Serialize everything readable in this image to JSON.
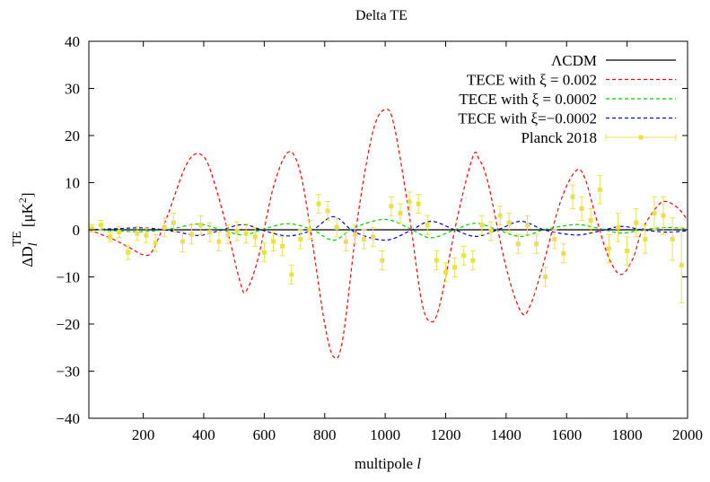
{
  "chart_data": {
    "type": "line",
    "title": "Delta TE",
    "xlabel": "multipole l",
    "ylabel": "ΔD_l^TE [μK²]",
    "xlim": [
      20,
      2000
    ],
    "ylim": [
      -40,
      40
    ],
    "xticks": [
      200,
      400,
      600,
      800,
      1000,
      1200,
      1400,
      1600,
      1800,
      2000
    ],
    "yticks": [
      -40,
      -30,
      -20,
      -10,
      0,
      10,
      20,
      30,
      40
    ],
    "legend_position": "top-right",
    "grid": false,
    "series": [
      {
        "name": "ΛCDM",
        "style": "solid",
        "color": "#000000",
        "x": [
          20,
          2000
        ],
        "y": [
          0,
          0
        ]
      },
      {
        "name": "TECE  with ξ =  0.002",
        "style": "dashed",
        "color": "#ff0000",
        "x": [
          20,
          100,
          160,
          200,
          230,
          280,
          330,
          360,
          390,
          420,
          470,
          520,
          540,
          580,
          630,
          680,
          720,
          760,
          800,
          830,
          860,
          910,
          960,
          1000,
          1030,
          1080,
          1120,
          1150,
          1180,
          1240,
          1290,
          1310,
          1340,
          1400,
          1450,
          1480,
          1520,
          1580,
          1630,
          1660,
          1700,
          1740,
          1780,
          1820,
          1850,
          1900,
          1930,
          1970,
          2000
        ],
        "y": [
          0,
          -2,
          -4,
          -5.3,
          -4.5,
          3,
          12,
          15.5,
          16,
          13,
          2,
          -11,
          -13,
          -6,
          9,
          16.5,
          12,
          -3,
          -20,
          -27,
          -23,
          3,
          21,
          25.5,
          22,
          3,
          -15,
          -19.5,
          -16,
          3,
          15.5,
          15,
          10,
          -8,
          -17.5,
          -16,
          -8,
          6,
          12.5,
          11,
          2,
          -6,
          -9.5,
          -6,
          0,
          5,
          6,
          4.5,
          2
        ]
      },
      {
        "name": "TECE with ξ = 0.0002",
        "style": "dashed",
        "color": "#00cc00",
        "x": [
          20,
          100,
          200,
          300,
          380,
          450,
          530,
          600,
          680,
          760,
          830,
          900,
          1000,
          1080,
          1150,
          1230,
          1300,
          1380,
          1450,
          1530,
          1630,
          1700,
          1780,
          1850,
          1930,
          2000
        ],
        "y": [
          0,
          -0.2,
          -0.4,
          0.3,
          1.2,
          0.2,
          -1.1,
          0.2,
          1.3,
          0,
          -2.2,
          0.5,
          2.2,
          0.3,
          -1.7,
          0,
          1.4,
          -0.2,
          -1.4,
          0.1,
          1.1,
          0.4,
          -0.7,
          0,
          0.5,
          0.2
        ]
      },
      {
        "name": "TECE with ξ=−0.0002",
        "style": "dashed",
        "color": "#0000cc",
        "x": [
          20,
          100,
          200,
          300,
          380,
          450,
          530,
          600,
          680,
          760,
          830,
          900,
          1000,
          1080,
          1150,
          1230,
          1300,
          1380,
          1450,
          1530,
          1630,
          1700,
          1780,
          1850,
          1930,
          2000
        ],
        "y": [
          0,
          0.2,
          0.4,
          -0.3,
          -1.2,
          -0.2,
          1.1,
          -0.2,
          -1.3,
          0,
          2.8,
          -0.5,
          -2.2,
          -0.3,
          1.8,
          0,
          -1.4,
          0.2,
          1.8,
          -0.1,
          -1.1,
          -0.4,
          0.7,
          0,
          -0.5,
          -0.2
        ]
      },
      {
        "name": "Planck 2018",
        "style": "points-errorbars",
        "color": "#e8e050",
        "points": [
          {
            "x": 30,
            "y": 0.3,
            "err": 0.8
          },
          {
            "x": 60,
            "y": 1.0,
            "err": 1.0
          },
          {
            "x": 90,
            "y": -1.5,
            "err": 1.0
          },
          {
            "x": 120,
            "y": -0.5,
            "err": 1.2
          },
          {
            "x": 150,
            "y": -4.8,
            "err": 1.5
          },
          {
            "x": 180,
            "y": -0.8,
            "err": 1.5
          },
          {
            "x": 210,
            "y": -1.2,
            "err": 1.5
          },
          {
            "x": 240,
            "y": -2.8,
            "err": 1.8
          },
          {
            "x": 270,
            "y": 0.5,
            "err": 2.0
          },
          {
            "x": 300,
            "y": 1.5,
            "err": 2.0
          },
          {
            "x": 330,
            "y": -2.5,
            "err": 2.2
          },
          {
            "x": 360,
            "y": -1.0,
            "err": 2.0
          },
          {
            "x": 390,
            "y": 1.0,
            "err": 2.0
          },
          {
            "x": 420,
            "y": -0.5,
            "err": 2.0
          },
          {
            "x": 450,
            "y": -2.5,
            "err": 2.0
          },
          {
            "x": 480,
            "y": -1.0,
            "err": 2.0
          },
          {
            "x": 510,
            "y": -0.3,
            "err": 2.0
          },
          {
            "x": 540,
            "y": -0.8,
            "err": 2.0
          },
          {
            "x": 570,
            "y": -1.5,
            "err": 2.0
          },
          {
            "x": 600,
            "y": -4.8,
            "err": 2.0
          },
          {
            "x": 630,
            "y": -2.5,
            "err": 2.0
          },
          {
            "x": 660,
            "y": -3.5,
            "err": 2.0
          },
          {
            "x": 690,
            "y": -9.5,
            "err": 2.0
          },
          {
            "x": 720,
            "y": -2.0,
            "err": 2.0
          },
          {
            "x": 750,
            "y": 0.0,
            "err": 2.0
          },
          {
            "x": 780,
            "y": 5.5,
            "err": 2.0
          },
          {
            "x": 810,
            "y": 4.0,
            "err": 2.0
          },
          {
            "x": 840,
            "y": 0.5,
            "err": 2.0
          },
          {
            "x": 870,
            "y": -2.5,
            "err": 2.0
          },
          {
            "x": 900,
            "y": -1.0,
            "err": 2.0
          },
          {
            "x": 930,
            "y": -2.0,
            "err": 2.0
          },
          {
            "x": 960,
            "y": -1.5,
            "err": 2.0
          },
          {
            "x": 990,
            "y": -6.5,
            "err": 2.0
          },
          {
            "x": 1020,
            "y": 5.0,
            "err": 2.0
          },
          {
            "x": 1050,
            "y": 3.5,
            "err": 2.0
          },
          {
            "x": 1080,
            "y": 6.0,
            "err": 2.0
          },
          {
            "x": 1110,
            "y": 5.5,
            "err": 2.0
          },
          {
            "x": 1140,
            "y": 1.0,
            "err": 2.0
          },
          {
            "x": 1170,
            "y": -6.5,
            "err": 2.0
          },
          {
            "x": 1200,
            "y": -9.0,
            "err": 2.0
          },
          {
            "x": 1230,
            "y": -8.0,
            "err": 2.0
          },
          {
            "x": 1260,
            "y": -5.5,
            "err": 2.0
          },
          {
            "x": 1290,
            "y": -6.5,
            "err": 2.0
          },
          {
            "x": 1320,
            "y": 1.0,
            "err": 2.0
          },
          {
            "x": 1350,
            "y": -0.3,
            "err": 2.0
          },
          {
            "x": 1380,
            "y": 3.0,
            "err": 2.0
          },
          {
            "x": 1410,
            "y": 1.5,
            "err": 2.0
          },
          {
            "x": 1440,
            "y": -3.0,
            "err": 2.0
          },
          {
            "x": 1470,
            "y": 1.0,
            "err": 2.0
          },
          {
            "x": 1500,
            "y": -3.0,
            "err": 2.0
          },
          {
            "x": 1530,
            "y": -10.0,
            "err": 2.0
          },
          {
            "x": 1560,
            "y": -2.0,
            "err": 2.0
          },
          {
            "x": 1590,
            "y": -5.0,
            "err": 2.0
          },
          {
            "x": 1620,
            "y": 7.0,
            "err": 2.5
          },
          {
            "x": 1650,
            "y": 4.5,
            "err": 2.5
          },
          {
            "x": 1680,
            "y": 2.0,
            "err": 2.5
          },
          {
            "x": 1710,
            "y": 8.5,
            "err": 3.0
          },
          {
            "x": 1740,
            "y": -4.0,
            "err": 3.0
          },
          {
            "x": 1770,
            "y": 0.5,
            "err": 3.0
          },
          {
            "x": 1800,
            "y": -4.5,
            "err": 3.0
          },
          {
            "x": 1830,
            "y": 1.5,
            "err": 3.0
          },
          {
            "x": 1860,
            "y": -2.0,
            "err": 3.0
          },
          {
            "x": 1890,
            "y": 3.5,
            "err": 3.5
          },
          {
            "x": 1920,
            "y": 3.0,
            "err": 4.0
          },
          {
            "x": 1950,
            "y": -2.0,
            "err": 4.5
          },
          {
            "x": 1980,
            "y": -7.5,
            "err": 8.0
          }
        ]
      }
    ]
  }
}
